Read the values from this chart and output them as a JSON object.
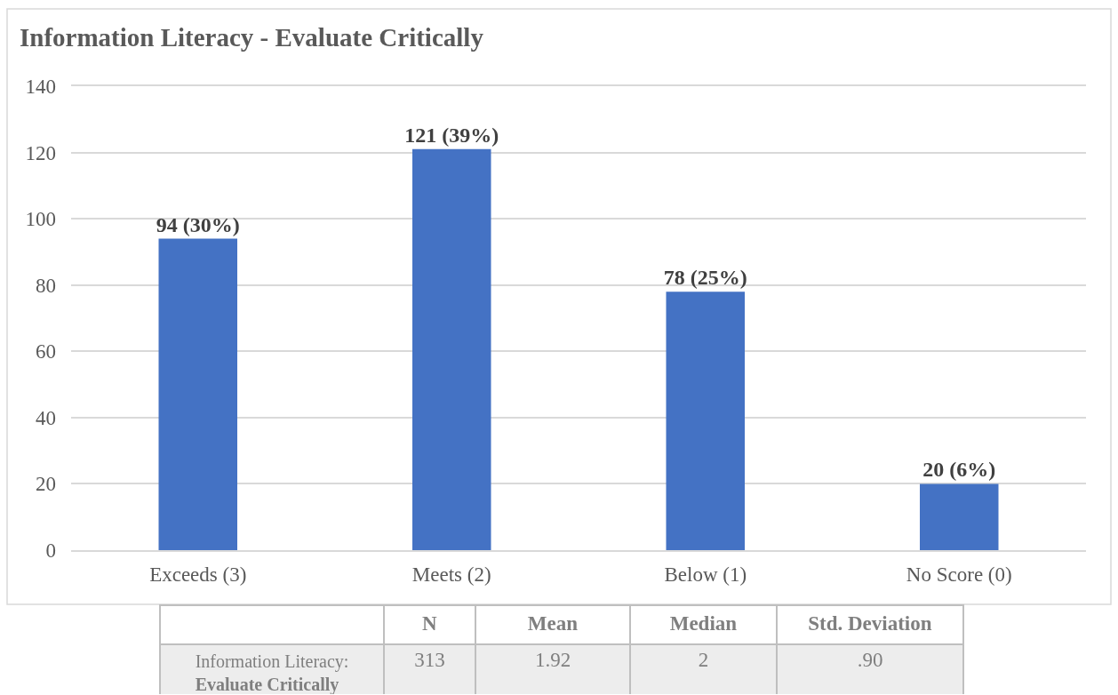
{
  "chart_data": [
    {
      "type": "bar",
      "title": "Information Literacy - Evaluate Critically",
      "categories": [
        "Exceeds (3)",
        "Meets (2)",
        "Below (1)",
        "No Score (0)"
      ],
      "values": [
        94,
        121,
        78,
        20
      ],
      "color": "#4472c4",
      "value_labels": [
        "94 (30%)",
        "121 (39%)",
        "78 (25%)",
        "20 (6%)"
      ],
      "ylim": [
        0,
        140
      ],
      "yticks": [
        0,
        20,
        40,
        60,
        80,
        100,
        120,
        140
      ],
      "grid": "y"
    },
    {
      "type": "other",
      "categories": [
        "N",
        "Mean",
        "Median",
        "Std. Deviation"
      ],
      "y_categories": [
        "Information Literacy: Evaluate Critically"
      ],
      "cell_labels": [
        [
          "313",
          "1.92",
          "2",
          ".90"
        ]
      ]
    }
  ]
}
